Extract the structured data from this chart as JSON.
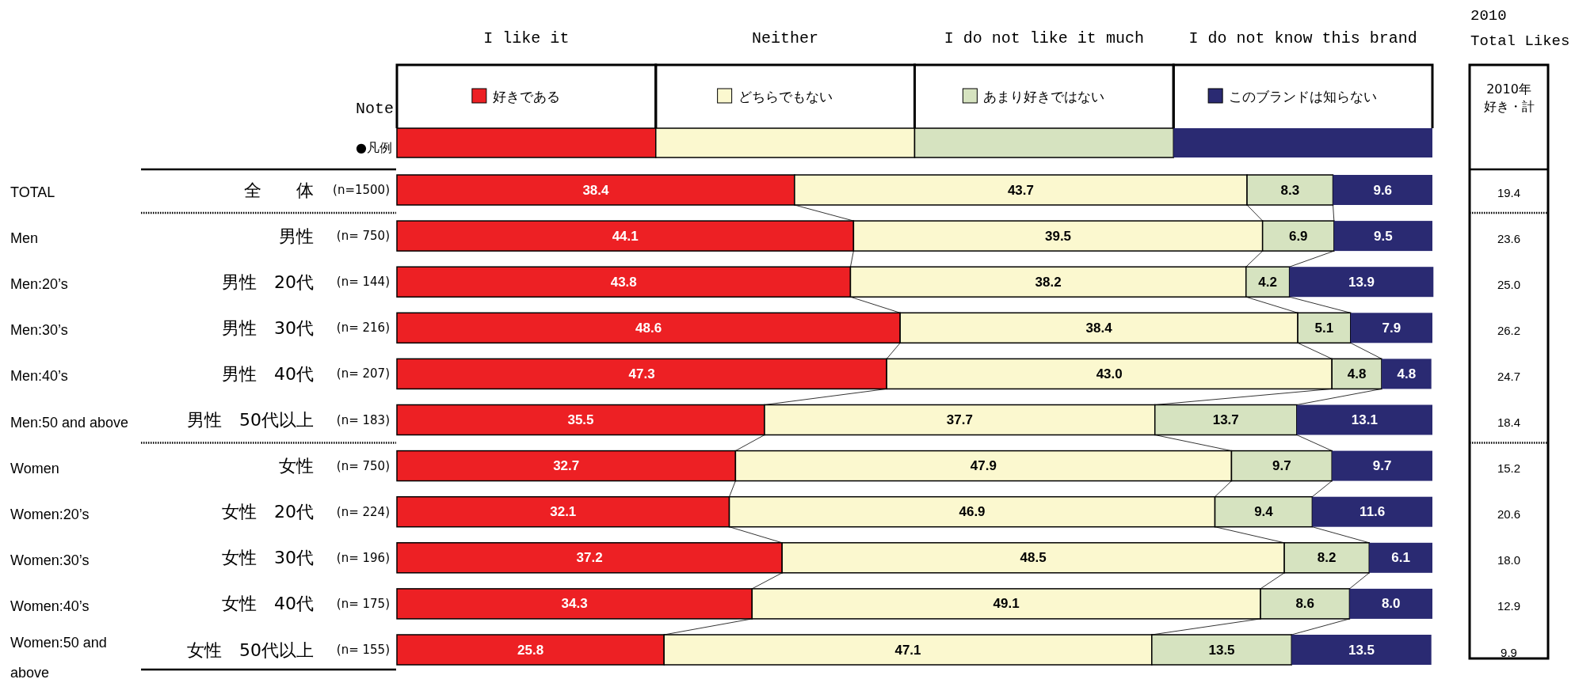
{
  "chart_data": {
    "type": "bar",
    "orientation": "horizontal",
    "stacked": true,
    "legend": "top",
    "xlim": [
      0,
      100
    ],
    "categories": [
      "全　　体",
      "男性",
      "男性　20代",
      "男性　30代",
      "男性　40代",
      "男性　50代以上",
      "女性",
      "女性　20代",
      "女性　30代",
      "女性　40代",
      "女性　50代以上"
    ],
    "series": [
      {
        "name": "好きである",
        "color": "#ed2024",
        "values": [
          38.4,
          44.1,
          43.8,
          48.6,
          47.3,
          35.5,
          32.7,
          32.1,
          37.2,
          34.3,
          25.8
        ],
        "value_labels": [
          "38.4",
          "44.1",
          "43.8",
          "48.6",
          "47.3",
          "35.5",
          "32.7",
          "32.1",
          "37.2",
          "34.3",
          "25.8"
        ]
      },
      {
        "name": "どちらでもない",
        "color": "#fbf8cf",
        "values": [
          43.7,
          39.5,
          38.2,
          38.4,
          43.0,
          37.7,
          47.9,
          46.9,
          48.5,
          49.1,
          47.1
        ],
        "value_labels": [
          "43.7",
          "39.5",
          "38.2",
          "38.4",
          "43.0",
          "37.7",
          "47.9",
          "46.9",
          "48.5",
          "49.1",
          "47.1"
        ]
      },
      {
        "name": "あまり好きではない",
        "color": "#d6e3c0",
        "values": [
          8.3,
          6.9,
          4.2,
          5.1,
          4.8,
          13.7,
          9.7,
          9.4,
          8.2,
          8.6,
          13.5
        ],
        "value_labels": [
          "8.3",
          "6.9",
          "4.2",
          "5.1",
          "4.8",
          "13.7",
          "9.7",
          "9.4",
          "8.2",
          "8.6",
          "13.5"
        ]
      },
      {
        "name": "このブランドは知らない",
        "color": "#2a2a72",
        "values": [
          9.6,
          9.5,
          13.9,
          7.9,
          4.8,
          13.1,
          9.7,
          11.6,
          6.1,
          8.0,
          13.5
        ],
        "value_labels": [
          "9.6",
          "9.5",
          "13.9",
          "7.9",
          "4.8",
          "13.1",
          "9.7",
          "11.6",
          "6.1",
          "8.0",
          "13.5"
        ]
      }
    ],
    "annotations": [
      "I like it",
      "Neither",
      "I do not like it much",
      "I do not know this brand",
      "Note",
      "●凡例",
      "2010",
      "Total Likes",
      "2010年",
      "好き・計",
      "TOTAL",
      "Men",
      "Men:20’s",
      "Men:30’s",
      "Men:40’s",
      "Men:50 and above",
      "Women",
      "Women:20’s",
      "Women:30’s",
      "Women:40’s",
      "Women:50 and above",
      "(n=1500)",
      "(n= 750)",
      "(n= 144)",
      "(n= 216)",
      "(n= 207)",
      "(n= 183)",
      "(n= 750)",
      "(n= 224)",
      "(n= 196)",
      "(n= 175)",
      "(n= 155)",
      "19.4",
      "23.6",
      "25.0",
      "26.2",
      "24.7",
      "18.4",
      "15.2",
      "20.6",
      "18.0",
      "12.9",
      "9.9"
    ]
  }
}
